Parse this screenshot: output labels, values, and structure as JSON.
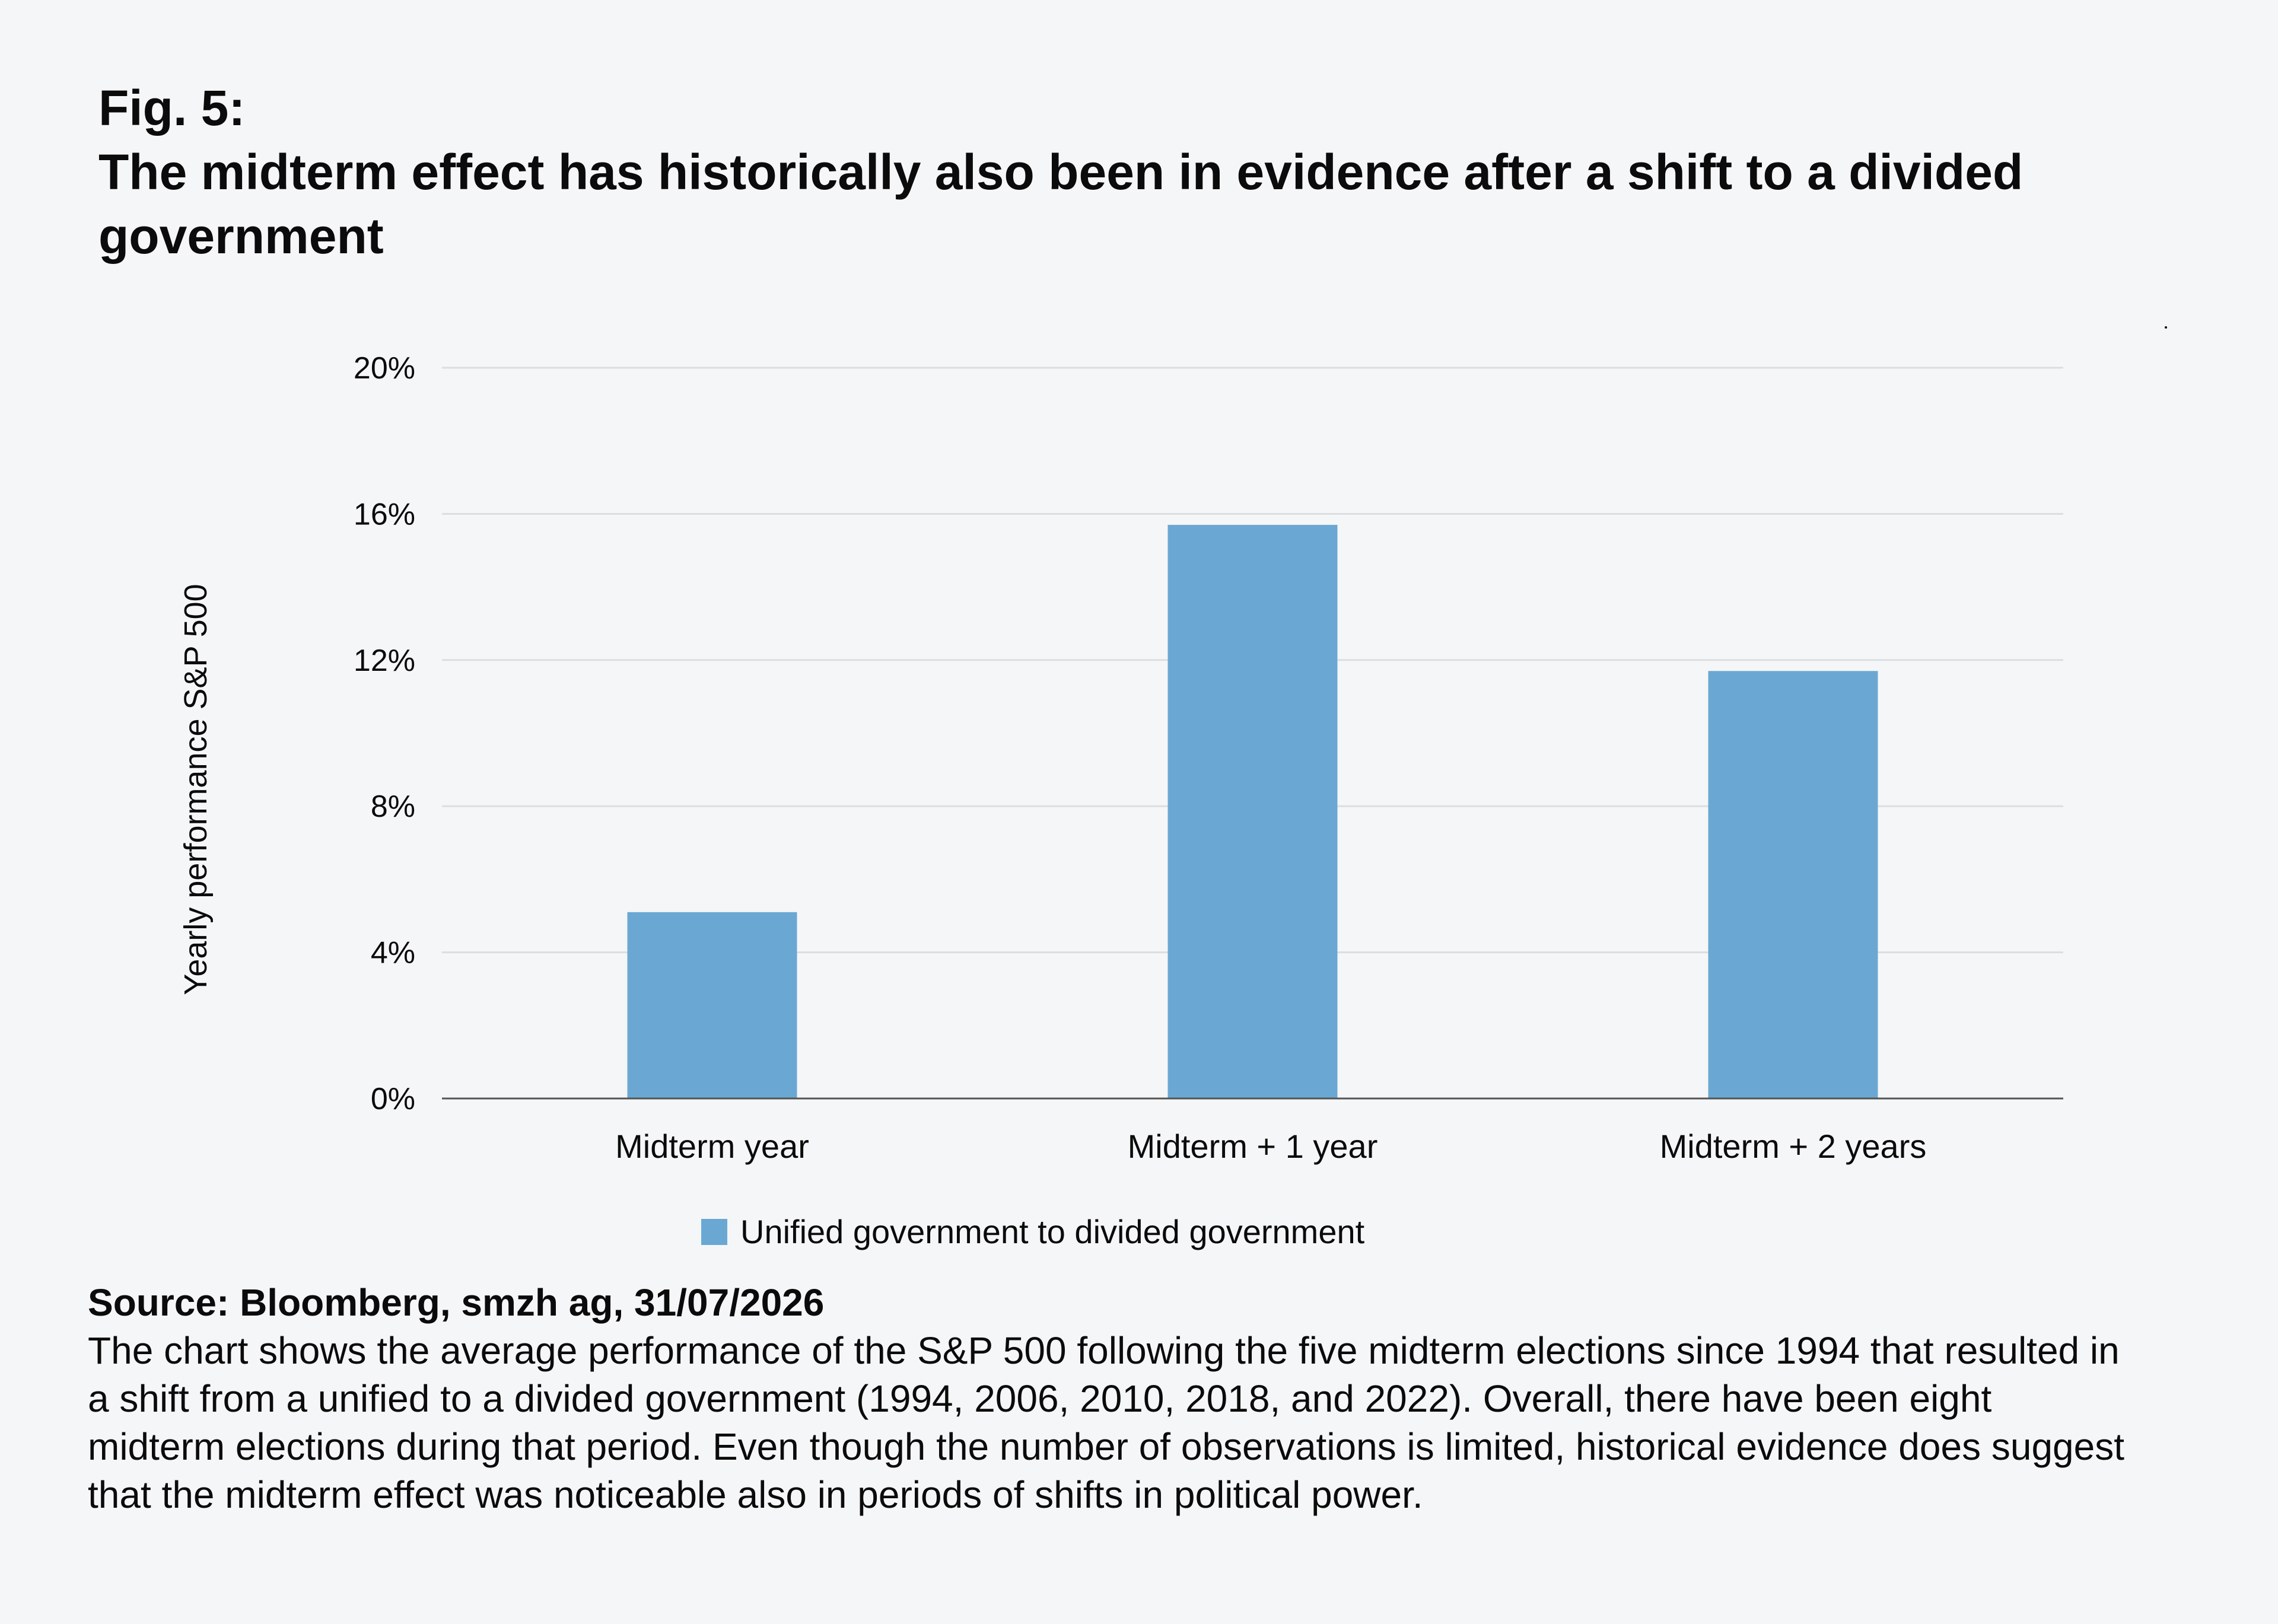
{
  "header": {
    "figure_number": "Fig. 5:",
    "title": "The midterm effect has historically also been in evidence after a shift to a divided government"
  },
  "chart_data": {
    "type": "bar",
    "categories": [
      "Midterm year",
      "Midterm + 1 year",
      "Midterm + 2 years"
    ],
    "series": [
      {
        "name": "Unified government to divided government",
        "values": [
          5.1,
          15.7,
          11.7
        ],
        "color": "#6aa8d3"
      }
    ],
    "ylabel": "Yearly performance S&P 500",
    "ylim": [
      0,
      20
    ],
    "yticks": [
      0,
      4,
      8,
      12,
      16,
      20
    ],
    "ytick_labels": [
      "0%",
      "4%",
      "8%",
      "12%",
      "16%",
      "20%"
    ],
    "grid": true,
    "legend_position": "bottom-center"
  },
  "footer": {
    "source": "Source: Bloomberg, smzh ag, 31/07/2026",
    "caption": "The chart shows the average performance of the S&P 500 following the five midterm elections since 1994 that resulted in a shift from a unified to a divided government (1994, 2006, 2010, 2018, and 2022). Overall, there have been eight midterm elections during that period. Even though the number of observations is limited, historical evidence does suggest that the midterm effect was noticeable also in periods of shifts in political power."
  },
  "colors": {
    "background": "#f5f6f8",
    "bar": "#6aa8d3",
    "gridline": "#dcdde0",
    "axis": "#555555",
    "text": "#0b0b0b"
  }
}
